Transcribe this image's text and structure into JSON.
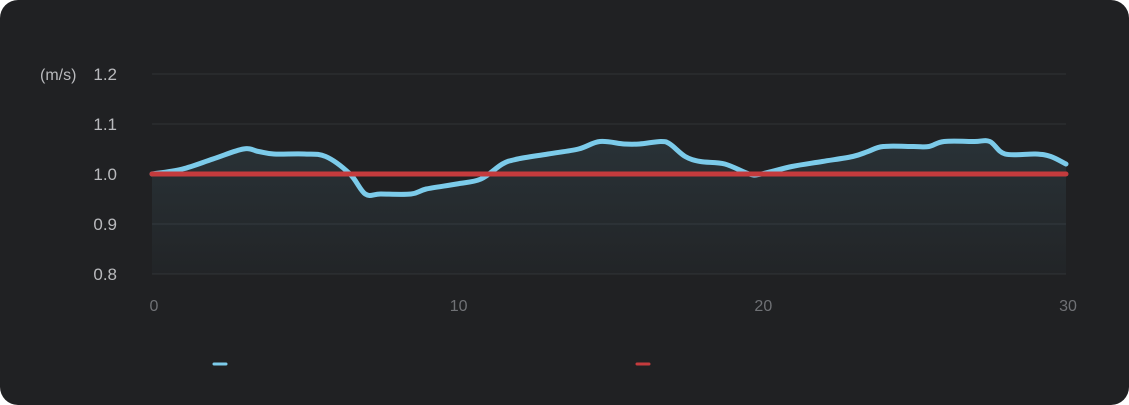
{
  "chart_data": {
    "type": "line",
    "ylabel": "(m/s)",
    "xlabel": "",
    "xlim": [
      0,
      30
    ],
    "ylim": [
      0.8,
      1.2
    ],
    "x_ticks": [
      "0",
      "10",
      "20",
      "30"
    ],
    "y_ticks": [
      "1.2",
      "1.1",
      "1.0",
      "0.9",
      "0.8"
    ],
    "grid": true,
    "legend_position": "bottom",
    "series": [
      {
        "color": "#7ccbea",
        "area": true,
        "x": [
          0,
          1,
          2,
          3,
          3.5,
          4,
          5,
          5.7,
          6.5,
          7,
          7.5,
          8.5,
          9,
          10,
          10.8,
          11.5,
          12,
          13,
          14,
          14.7,
          15.5,
          16,
          16.7,
          17,
          17.5,
          18,
          18.8,
          19.6,
          20,
          21,
          22,
          23,
          23.5,
          24,
          25,
          25.5,
          26,
          27,
          27.5,
          28,
          29,
          29.5,
          30
        ],
        "values": [
          1.0,
          1.01,
          1.03,
          1.05,
          1.045,
          1.04,
          1.04,
          1.035,
          1.0,
          0.96,
          0.96,
          0.96,
          0.97,
          0.98,
          0.99,
          1.02,
          1.03,
          1.04,
          1.05,
          1.065,
          1.06,
          1.06,
          1.065,
          1.06,
          1.035,
          1.025,
          1.02,
          1.0,
          1.0,
          1.015,
          1.025,
          1.035,
          1.045,
          1.055,
          1.055,
          1.055,
          1.065,
          1.065,
          1.065,
          1.04,
          1.04,
          1.035,
          1.02
        ]
      },
      {
        "color": "#c43b3d",
        "area": false,
        "x": [
          0,
          30
        ],
        "values": [
          1.0,
          1.0
        ]
      }
    ]
  }
}
